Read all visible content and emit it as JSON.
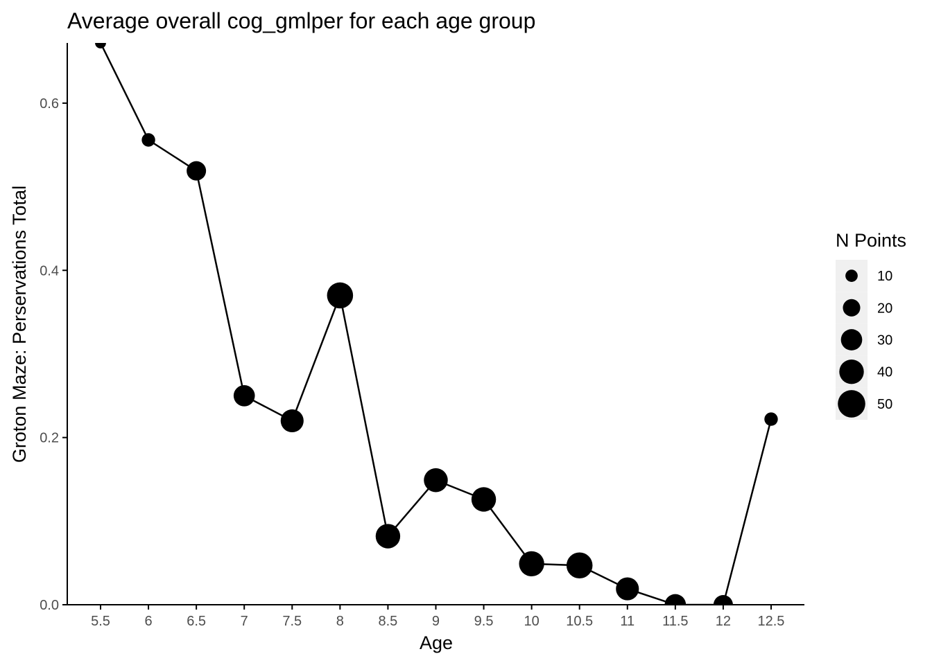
{
  "chart_data": {
    "type": "line",
    "title": "Average overall cog_gmlper for each age group",
    "xlabel": "Age",
    "ylabel": "Groton Maze: Perservations Total",
    "x": [
      5.5,
      6,
      6.5,
      7,
      7.5,
      8,
      8.5,
      9,
      9.5,
      10,
      10.5,
      11,
      11.5,
      12,
      12.5
    ],
    "x_tick_labels": [
      "5.5",
      "6",
      "6.5",
      "7",
      "7.5",
      "8",
      "8.5",
      "9",
      "9.5",
      "10",
      "10.5",
      "11",
      "11.5",
      "12",
      "12.5"
    ],
    "y": [
      0.672,
      0.556,
      0.519,
      0.25,
      0.22,
      0.37,
      0.082,
      0.149,
      0.126,
      0.049,
      0.047,
      0.019,
      0.0,
      0.0,
      0.222
    ],
    "n_points": [
      8,
      12,
      25,
      30,
      35,
      45,
      40,
      38,
      40,
      42,
      45,
      35,
      30,
      25,
      12
    ],
    "ylim": [
      0,
      0.672
    ],
    "y_ticks": [
      0.0,
      0.2,
      0.4,
      0.6
    ],
    "y_tick_labels": [
      "0.0",
      "0.2",
      "0.4",
      "0.6"
    ],
    "grid": false,
    "legend": {
      "title": "N Points",
      "placement": "right",
      "sizes": [
        10,
        20,
        30,
        40,
        50
      ],
      "labels": [
        "10",
        "20",
        "30",
        "40",
        "50"
      ]
    },
    "colors": {
      "line": "#000000",
      "points": "#000000",
      "legend_key_bg": "#f0f0f0",
      "tick_text": "#4d4d4d"
    }
  }
}
